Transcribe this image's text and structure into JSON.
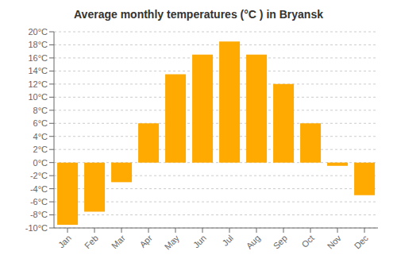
{
  "chart_data": {
    "type": "bar",
    "title": "Average monthly temperatures (°C ) in Bryansk",
    "categories": [
      "Jan",
      "Feb",
      "Mar",
      "Apr",
      "May",
      "Jun",
      "Jul",
      "Aug",
      "Sep",
      "Oct",
      "Nov",
      "Dec"
    ],
    "values": [
      -9.5,
      -7.5,
      -3.0,
      6.0,
      13.5,
      16.5,
      18.5,
      16.5,
      12.0,
      6.0,
      -0.5,
      -5.0
    ],
    "color": "#FFAA00",
    "ylim": [
      -10,
      20
    ],
    "yticks": [
      {
        "value": -10,
        "label": "-10°C"
      },
      {
        "value": -8,
        "label": "-8°C"
      },
      {
        "value": -6,
        "label": "-6°C"
      },
      {
        "value": -4,
        "label": "-4°C"
      },
      {
        "value": -2,
        "label": "-2°C"
      },
      {
        "value": 0,
        "label": "0°C"
      },
      {
        "value": 2,
        "label": "2°C"
      },
      {
        "value": 4,
        "label": "4°C"
      },
      {
        "value": 6,
        "label": "6°C"
      },
      {
        "value": 8,
        "label": "8°C"
      },
      {
        "value": 10,
        "label": "10°C"
      },
      {
        "value": 12,
        "label": "12°C"
      },
      {
        "value": 14,
        "label": "14°C"
      },
      {
        "value": 16,
        "label": "16°C"
      },
      {
        "value": 18,
        "label": "18°C"
      },
      {
        "value": 20,
        "label": "20°C"
      }
    ],
    "grid": true
  }
}
